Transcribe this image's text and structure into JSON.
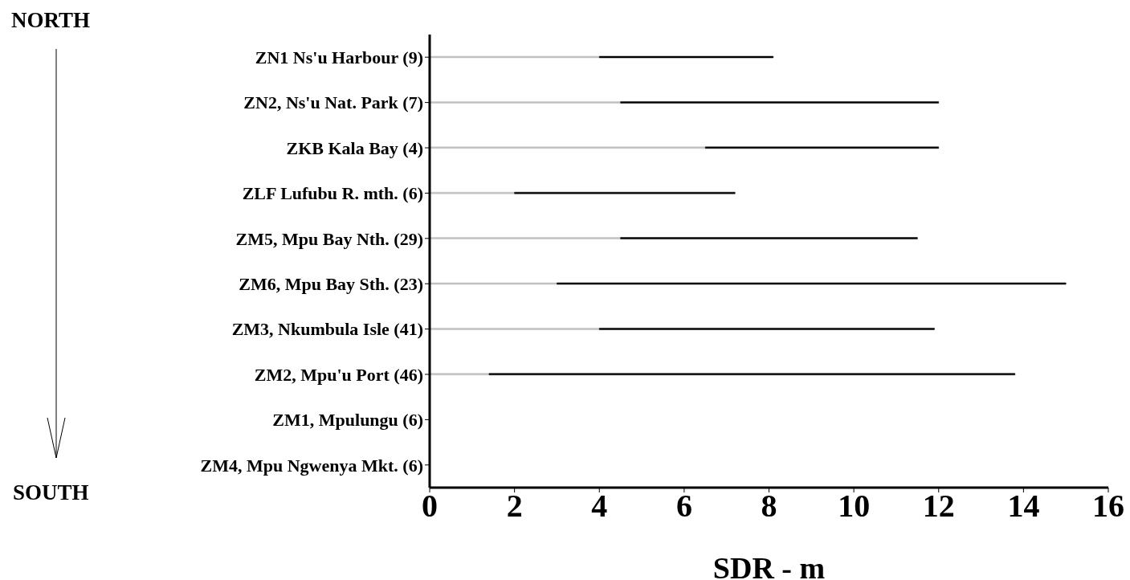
{
  "chart_data": {
    "type": "bar",
    "orientation": "horizontal",
    "stacked": true,
    "categories": [
      "ZN1 Ns'u Harbour (9)",
      "ZN2, Ns'u Nat. Park (7)",
      "ZKB Kala Bay (4)",
      "ZLF Lufubu R. mth. (6)",
      "ZM5, Mpu Bay Nth. (29)",
      "ZM6, Mpu Bay Sth. (23)",
      "ZM3, Nkumbula Isle (41)",
      "ZM2, Mpu'u Port (46)",
      "ZM1, Mpulungu (6)",
      "ZM4, Mpu Ngwenya Mkt. (6)"
    ],
    "series": [
      {
        "color": "#c0c0c0",
        "values": [
          4,
          4.5,
          6.5,
          2,
          4.5,
          3,
          4,
          1.4,
          null,
          null
        ]
      },
      {
        "color": "#000000",
        "values": [
          4.1,
          7.5,
          5.5,
          5.2,
          7,
          12,
          7.9,
          12.4,
          null,
          null
        ]
      }
    ],
    "xlim": [
      0,
      16
    ],
    "xticks": [
      0,
      2,
      4,
      6,
      8,
      10,
      12,
      14,
      16
    ],
    "xlabel": "SDR - m",
    "annotations": [
      "NORTH",
      "SOUTH"
    ],
    "grid": false,
    "legend": false
  }
}
